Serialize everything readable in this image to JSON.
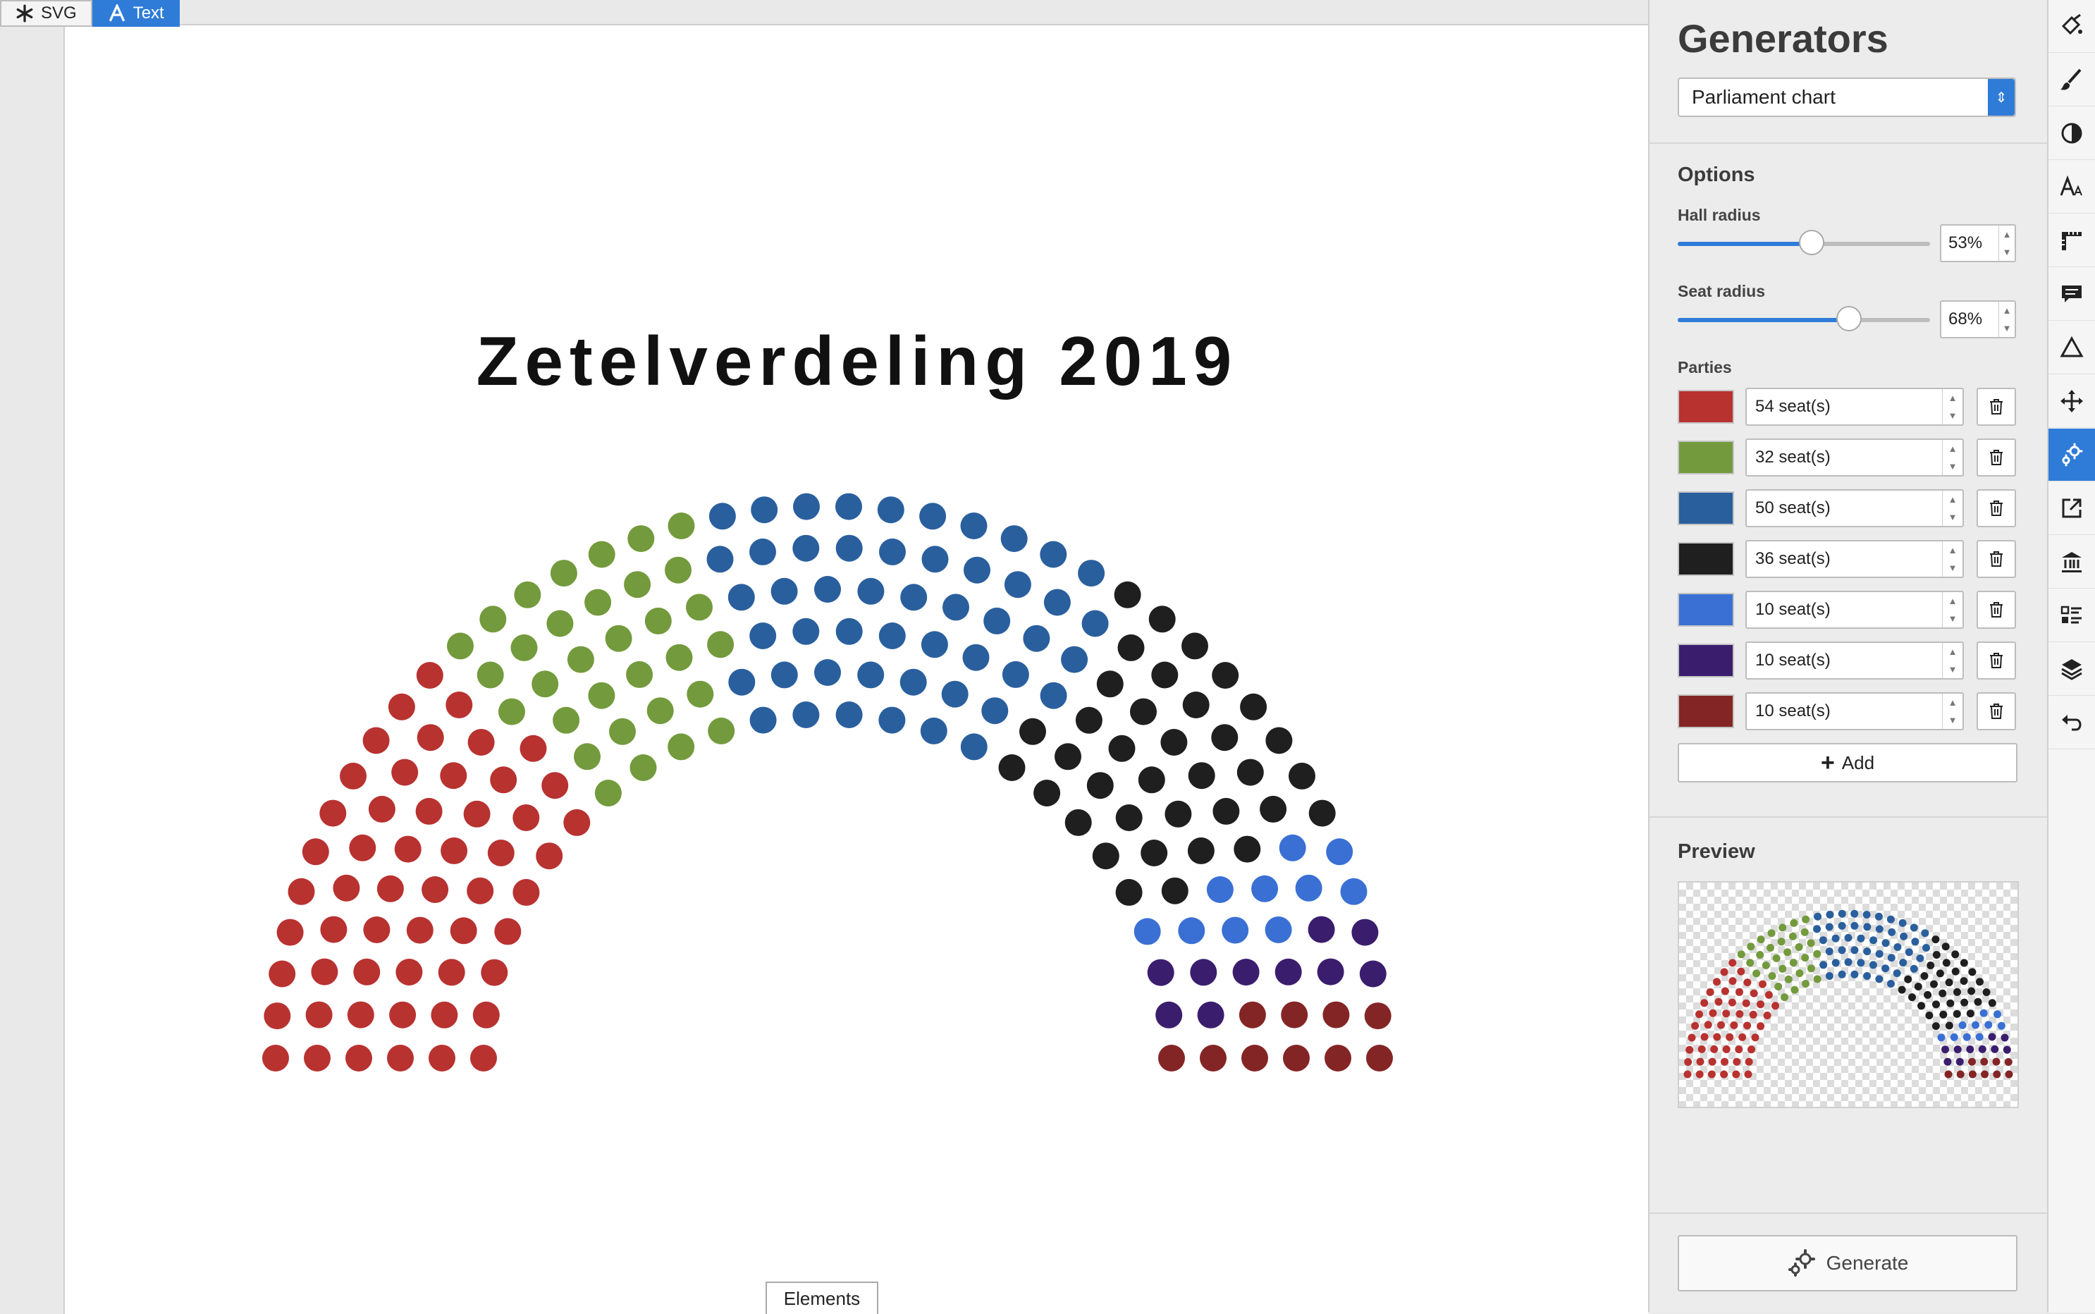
{
  "toolbar": {
    "svg_label": "SVG",
    "text_label": "Text"
  },
  "canvas": {
    "title": "Zetelverdeling 2019",
    "elements_label": "Elements"
  },
  "panel": {
    "title": "Generators",
    "generator_select": "Parliament chart",
    "options_title": "Options",
    "hall_radius_label": "Hall radius",
    "hall_radius_value": "53%",
    "hall_radius_fraction": 0.53,
    "seat_radius_label": "Seat radius",
    "seat_radius_value": "68%",
    "seat_radius_fraction": 0.68,
    "parties_title": "Parties",
    "add_label": "Add",
    "preview_title": "Preview",
    "generate_label": "Generate"
  },
  "parties": [
    {
      "seats_label": "54 seat(s)",
      "seats": 54,
      "color": "#b83230"
    },
    {
      "seats_label": "32 seat(s)",
      "seats": 32,
      "color": "#739a3c"
    },
    {
      "seats_label": "50 seat(s)",
      "seats": 50,
      "color": "#2a5f9e"
    },
    {
      "seats_label": "36 seat(s)",
      "seats": 36,
      "color": "#1f1f1f"
    },
    {
      "seats_label": "10 seat(s)",
      "seats": 10,
      "color": "#3a70d4"
    },
    {
      "seats_label": "10 seat(s)",
      "seats": 10,
      "color": "#3b1d6e"
    },
    {
      "seats_label": "10 seat(s)",
      "seats": 10,
      "color": "#842525"
    }
  ],
  "rail_icons": [
    "paint-bucket-icon",
    "brush-icon",
    "contrast-icon",
    "text-size-icon",
    "ruler-icon",
    "comment-icon",
    "triangle-icon",
    "move-icon",
    "generators-icon",
    "export-icon",
    "institution-icon",
    "list-icon",
    "layers-icon",
    "undo-icon"
  ],
  "accent_color": "#2f7cd8"
}
